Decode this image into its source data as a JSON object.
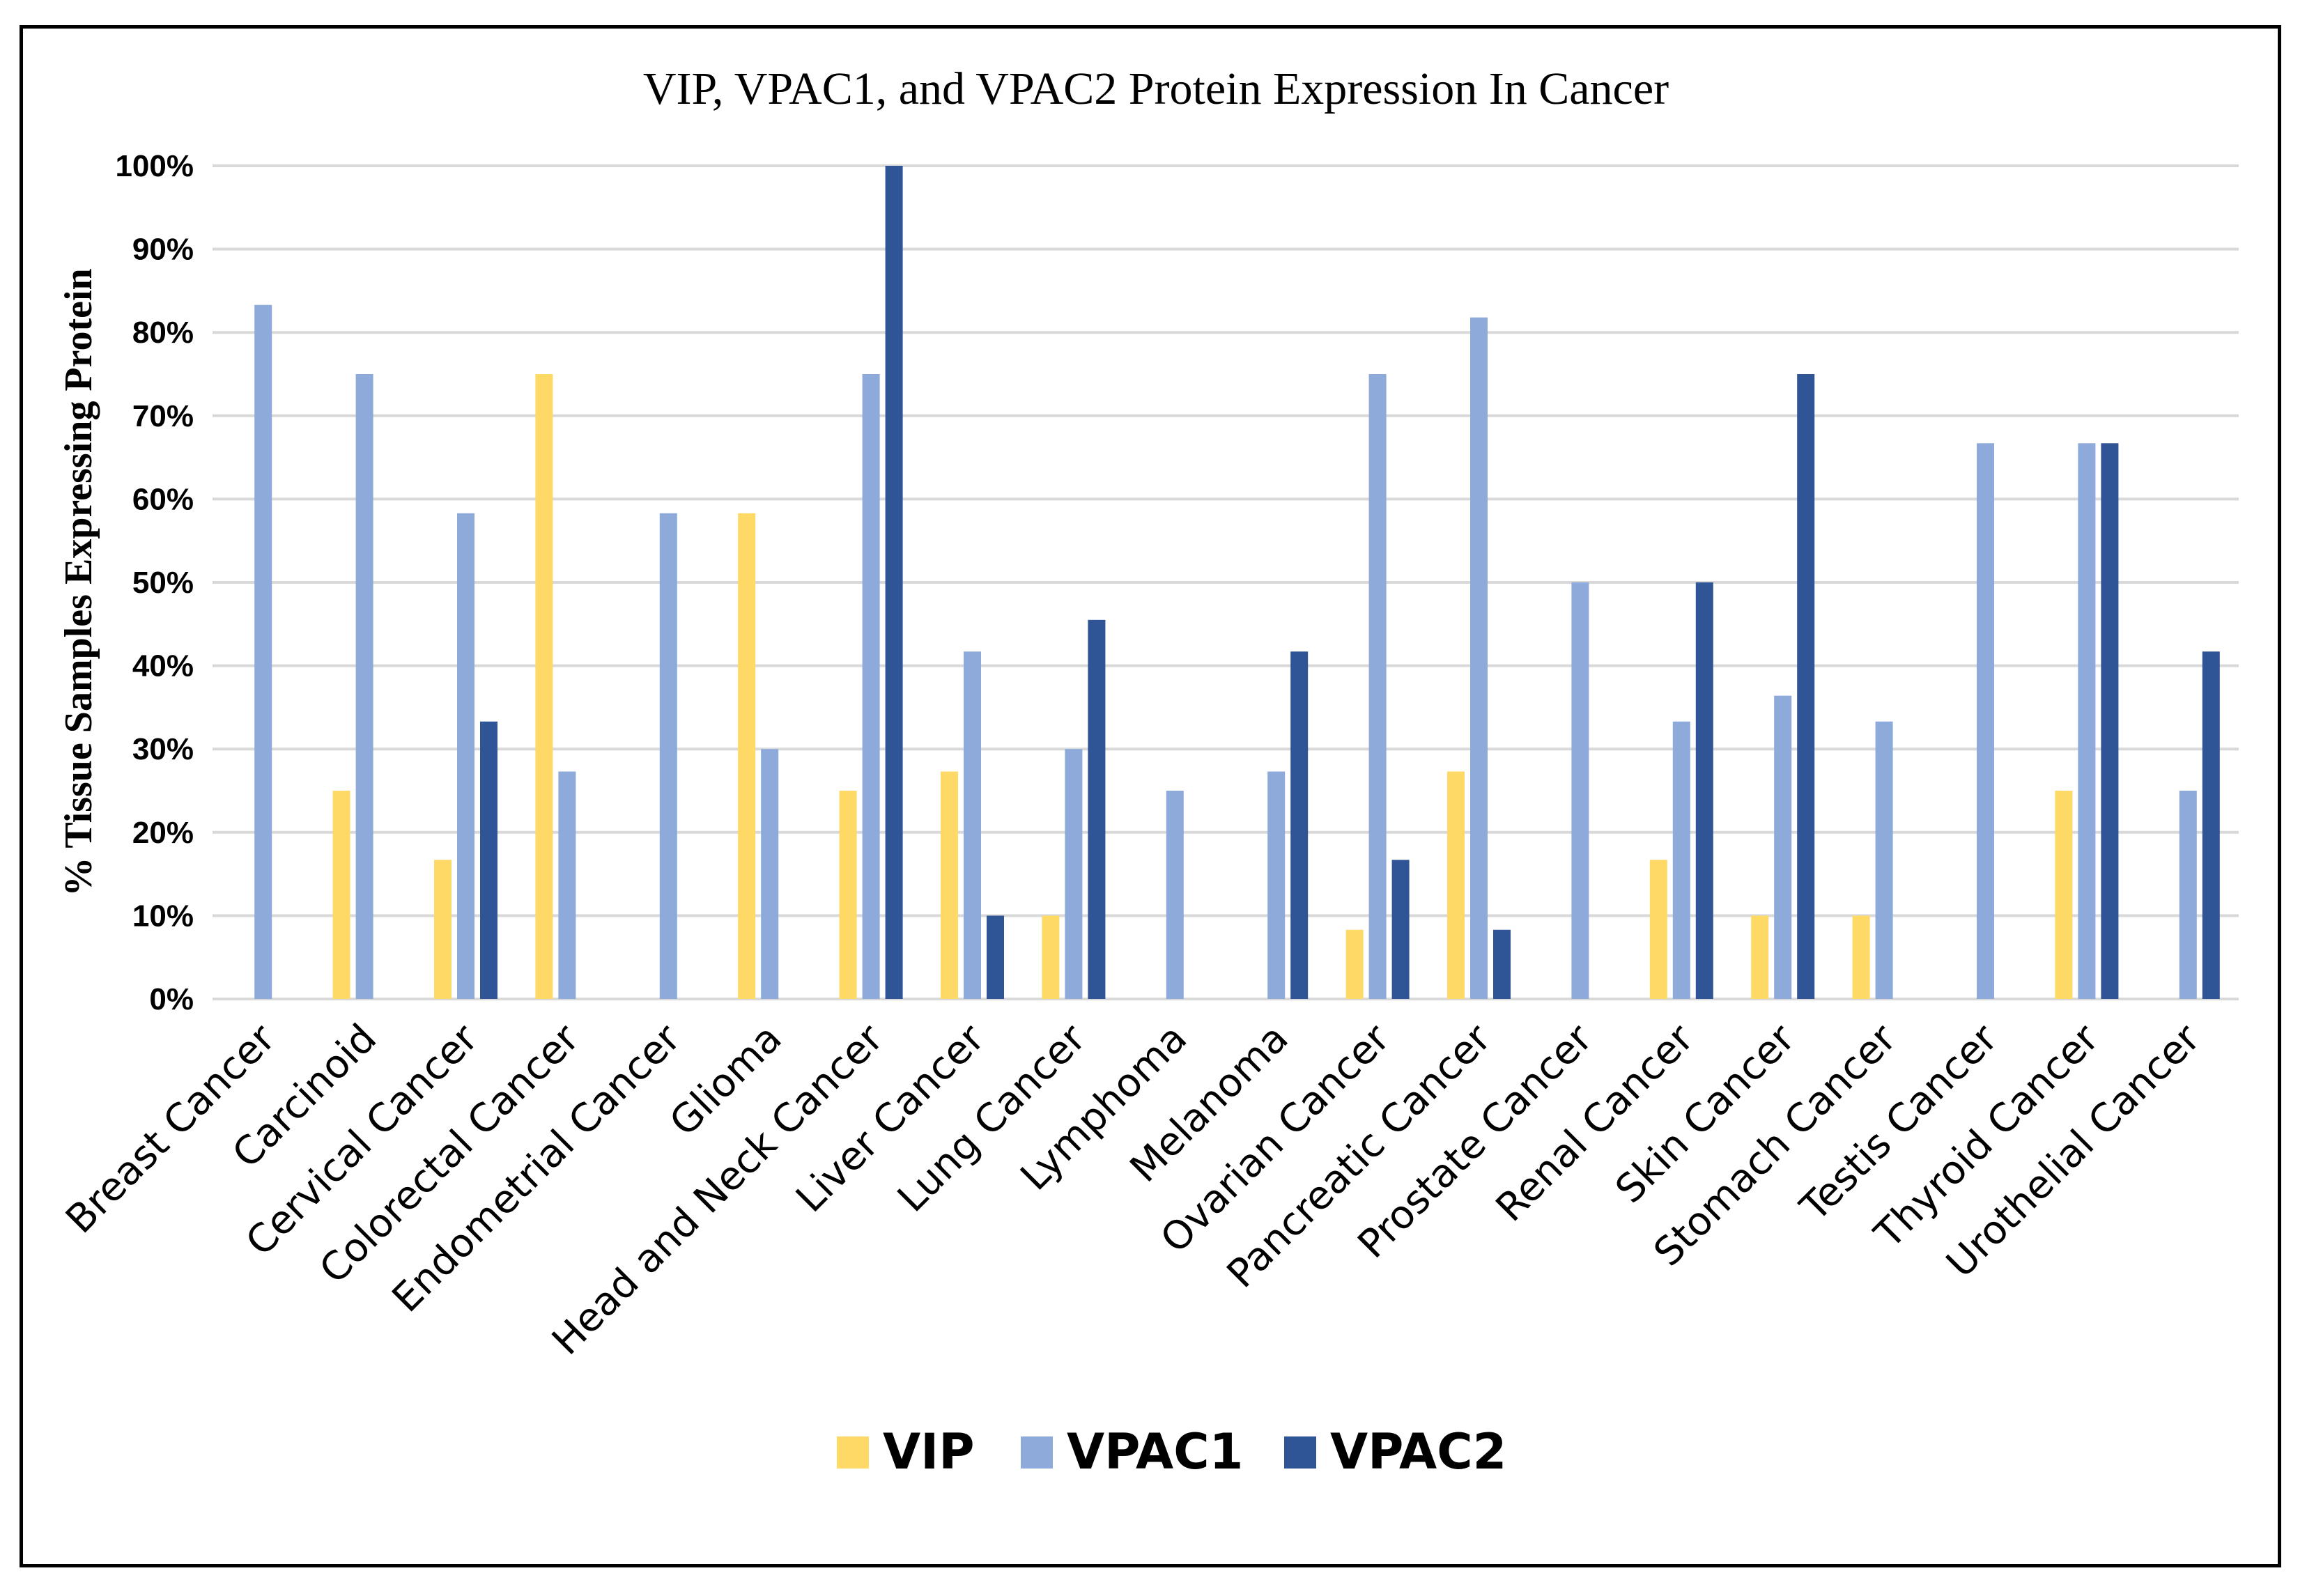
{
  "chart_data": {
    "type": "bar",
    "title": "VIP, VPAC1, and VPAC2 Protein Expression In Cancer",
    "xlabel": "",
    "ylabel": "% Tissue Samples Expressing Protein",
    "ylim": [
      0,
      100
    ],
    "yticks": [
      "0%",
      "10%",
      "20%",
      "30%",
      "40%",
      "50%",
      "60%",
      "70%",
      "80%",
      "90%",
      "100%"
    ],
    "grid": true,
    "legend_position": "bottom",
    "categories": [
      "Breast Cancer",
      "Carcinoid",
      "Cervical Cancer",
      "Colorectal Cancer",
      "Endometrial Cancer",
      "Glioma",
      "Head and Neck Cancer",
      "Liver Cancer",
      "Lung Cancer",
      "Lymphoma",
      "Melanoma",
      "Ovarian Cancer",
      "Pancreatic Cancer",
      "Prostate Cancer",
      "Renal Cancer",
      "Skin Cancer",
      "Stomach Cancer",
      "Testis Cancer",
      "Thyroid Cancer",
      "Urothelial Cancer"
    ],
    "series": [
      {
        "name": "VIP",
        "color": "#ffd966",
        "values": [
          0,
          25,
          16.7,
          75,
          0,
          58.3,
          25,
          27.3,
          10,
          0,
          0,
          8.3,
          27.3,
          0,
          16.7,
          10,
          10,
          0,
          25,
          0
        ]
      },
      {
        "name": "VPAC1",
        "color": "#8eaadb",
        "values": [
          83.3,
          75,
          58.3,
          27.3,
          58.3,
          30,
          75,
          41.7,
          30,
          25,
          27.3,
          75,
          81.8,
          50,
          33.3,
          36.4,
          33.3,
          66.7,
          66.7,
          25
        ]
      },
      {
        "name": "VPAC2",
        "color": "#2f5597",
        "values": [
          0,
          0,
          33.3,
          0,
          0,
          0,
          100,
          10,
          45.5,
          0,
          41.7,
          16.7,
          8.3,
          0,
          50,
          75,
          0,
          0,
          66.7,
          41.7
        ]
      }
    ]
  }
}
